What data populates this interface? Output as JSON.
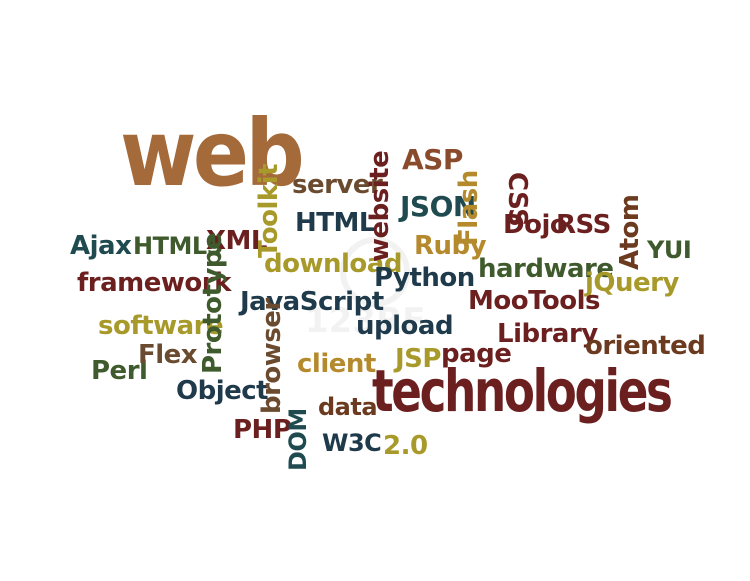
{
  "colors": {
    "brown": "#a46a3a",
    "maroon": "#6b1f1f",
    "teal": "#1f4a4f",
    "olive": "#8d8a22",
    "green": "#3f5a2c",
    "gold": "#b58a2d"
  },
  "words": {
    "web": "web",
    "technologies": "technologies",
    "toolkit": "Toolkit",
    "server": "server",
    "website": "website",
    "asp": "ASP",
    "flash": "Flash",
    "css": "CSS",
    "ajax": "Ajax",
    "html5": "HTML5",
    "xml": "XML",
    "html": "HTML",
    "json": "JSON",
    "dojo": "Dojo",
    "rss": "RSS",
    "atom": "Atom",
    "yui": "YUI",
    "ruby": "Ruby",
    "framework": "framework",
    "download": "download",
    "hardware": "hardware",
    "jquery": "jQuery",
    "prototype": "Prototype",
    "python": "Python",
    "javascript": "JavaScript",
    "mootools": "MooTools",
    "software": "software",
    "upload": "upload",
    "library": "Library",
    "oriented": "oriented",
    "perl": "Perl",
    "flex": "Flex",
    "browser": "browser",
    "client": "client",
    "jsp": "JSP",
    "page": "page",
    "object": "Object",
    "data": "data",
    "php": "PHP",
    "dom": "DOM",
    "w3c": "W3C",
    "two_zero": "2.0"
  },
  "watermark": "123RF"
}
